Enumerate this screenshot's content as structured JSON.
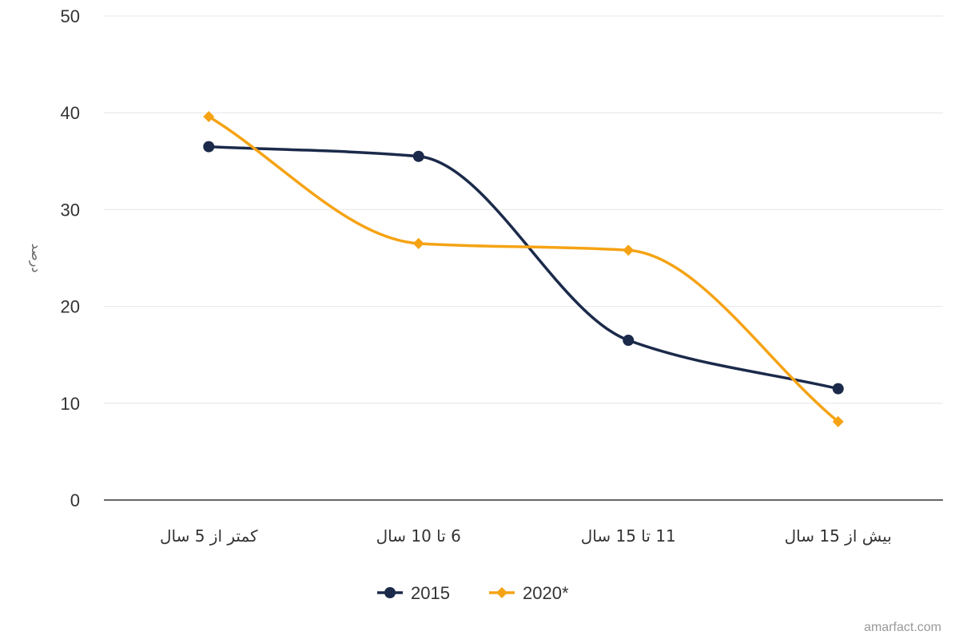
{
  "chart_data": {
    "type": "line",
    "categories": [
      "کمتر از 5 سال",
      "6 تا 10 سال",
      "11 تا 15 سال",
      "بیش از 15 سال"
    ],
    "series": [
      {
        "name": "2015",
        "values": [
          36.5,
          35.5,
          16.5,
          11.5
        ],
        "color": "#1b2a4a",
        "marker": "circle"
      },
      {
        "name": "2020*",
        "values": [
          39.6,
          26.5,
          25.8,
          8.1
        ],
        "color": "#f5a314",
        "marker": "diamond"
      }
    ],
    "y_ticks": [
      "0",
      "10",
      "20",
      "30",
      "40",
      "50"
    ],
    "ylim": [
      0,
      50
    ],
    "ylabel": "درصد",
    "xlabel": "",
    "title": "",
    "grid": true,
    "smooth": true,
    "legend_position": "bottom-center",
    "credit": "amarfact.com",
    "colors": {
      "grid": "#e6e6e6",
      "axis": "#333333"
    }
  }
}
